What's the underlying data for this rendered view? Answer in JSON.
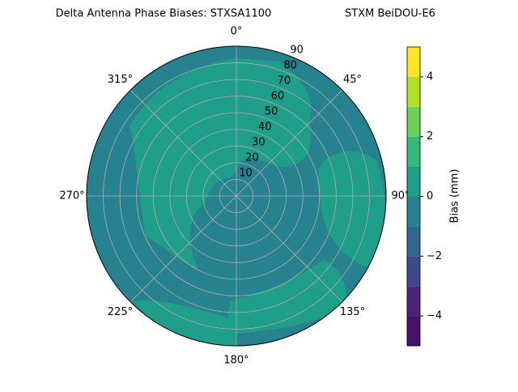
{
  "chart_data": {
    "type": "polar-contour",
    "title": "Delta Antenna Phase Biases: STXSA1100",
    "subtitle": "STXM BeiDOU-E6",
    "rlim": [
      0,
      90
    ],
    "rticks": [
      10,
      20,
      30,
      40,
      50,
      60,
      70,
      80,
      90
    ],
    "thetaticks": [
      {
        "value": 0,
        "label": "0°"
      },
      {
        "value": 45,
        "label": "45°"
      },
      {
        "value": 90,
        "label": "90°"
      },
      {
        "value": 135,
        "label": "135°"
      },
      {
        "value": 180,
        "label": "180°"
      },
      {
        "value": 225,
        "label": "225°"
      },
      {
        "value": 270,
        "label": "270°"
      },
      {
        "value": 315,
        "label": "315°"
      }
    ],
    "grid": true,
    "colorbar": {
      "label": "Bias (mm)",
      "levels": [
        -5,
        -4,
        -3,
        -2,
        -1,
        0,
        1,
        2,
        3,
        4,
        5
      ],
      "colors": [
        "#471164",
        "#482677",
        "#3e4989",
        "#31688e",
        "#26828e",
        "#1f9e89",
        "#35b779",
        "#6ece58",
        "#b5de2b",
        "#fde725"
      ],
      "lim": [
        -5,
        5
      ],
      "ticks": [
        {
          "value": -4,
          "label": "−4"
        },
        {
          "value": -2,
          "label": "−2"
        },
        0,
        2,
        4
      ]
    }
  }
}
